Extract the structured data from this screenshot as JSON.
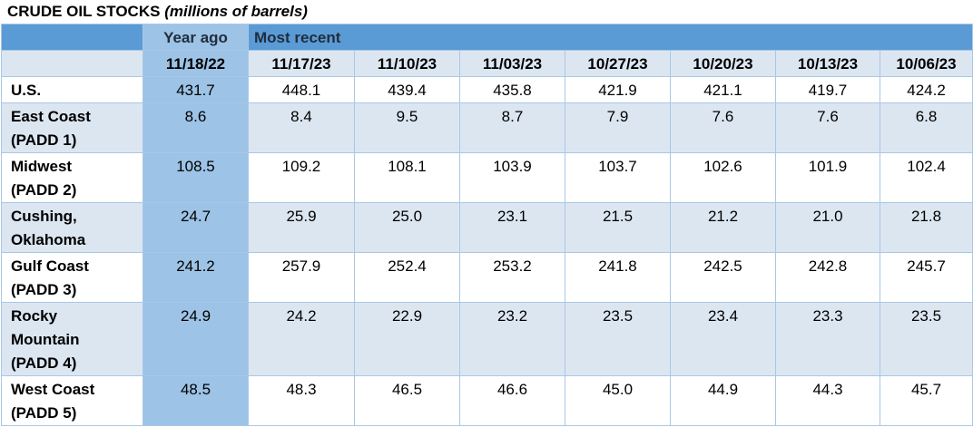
{
  "header": {
    "title": "CRUDE OIL STOCKS",
    "subtitle": "(millions of barrels)"
  },
  "table": {
    "groups": [
      "Year ago",
      "Most recent"
    ],
    "columns": [
      "11/18/22",
      "11/17/23",
      "11/10/23",
      "11/03/23",
      "10/27/23",
      "10/20/23",
      "10/13/23",
      "10/06/23"
    ],
    "rows": [
      {
        "label": "U.S.",
        "values": [
          "431.7",
          "448.1",
          "439.4",
          "435.8",
          "421.9",
          "421.1",
          "419.7",
          "424.2"
        ]
      },
      {
        "label": "East Coast\n(PADD 1)",
        "values": [
          "8.6",
          "8.4",
          "9.5",
          "8.7",
          "7.9",
          "7.6",
          "7.6",
          "6.8"
        ]
      },
      {
        "label": "Midwest\n(PADD 2)",
        "values": [
          "108.5",
          "109.2",
          "108.1",
          "103.9",
          "103.7",
          "102.6",
          "101.9",
          "102.4"
        ]
      },
      {
        "label": "Cushing,\nOklahoma",
        "values": [
          "24.7",
          "25.9",
          "25.0",
          "23.1",
          "21.5",
          "21.2",
          "21.0",
          "21.8"
        ]
      },
      {
        "label": "Gulf Coast\n(PADD 3)",
        "values": [
          "241.2",
          "257.9",
          "252.4",
          "253.2",
          "241.8",
          "242.5",
          "242.8",
          "245.7"
        ]
      },
      {
        "label": "Rocky\nMountain\n(PADD 4)",
        "values": [
          "24.9",
          "24.2",
          "22.9",
          "23.2",
          "23.5",
          "23.4",
          "23.3",
          "23.5"
        ]
      },
      {
        "label": "West Coast\n(PADD 5)",
        "values": [
          "48.5",
          "48.3",
          "46.5",
          "46.6",
          "45.0",
          "44.9",
          "44.3",
          "45.7"
        ]
      }
    ]
  }
}
